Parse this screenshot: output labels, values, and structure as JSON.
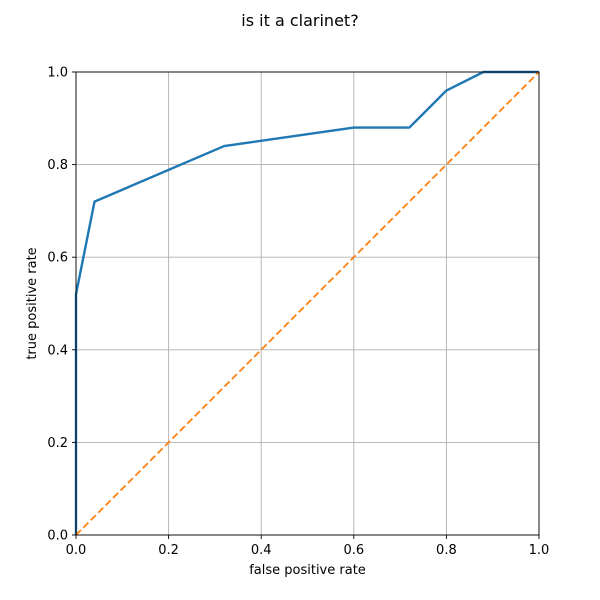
{
  "chart_data": {
    "type": "line",
    "title": "is it a clarinet?",
    "xlabel": "false positive rate",
    "ylabel": "true positive rate",
    "xlim": [
      0,
      1
    ],
    "ylim": [
      0,
      1
    ],
    "xticks": [
      "0.0",
      "0.2",
      "0.4",
      "0.6",
      "0.8",
      "1.0"
    ],
    "yticks": [
      "0.0",
      "0.2",
      "0.4",
      "0.6",
      "0.8",
      "1.0"
    ],
    "grid": true,
    "legend": "none",
    "series": [
      {
        "color": "#1f77b4",
        "style": "solid",
        "x": [
          0.0,
          0.0,
          0.04,
          0.32,
          0.6,
          0.72,
          0.8,
          0.88,
          1.0
        ],
        "y": [
          0.0,
          0.52,
          0.72,
          0.84,
          0.88,
          0.88,
          0.96,
          1.0,
          1.0
        ]
      },
      {
        "color": "#ff7f0e",
        "style": "dashed",
        "x": [
          0.0,
          1.0
        ],
        "y": [
          0.0,
          1.0
        ]
      }
    ]
  }
}
